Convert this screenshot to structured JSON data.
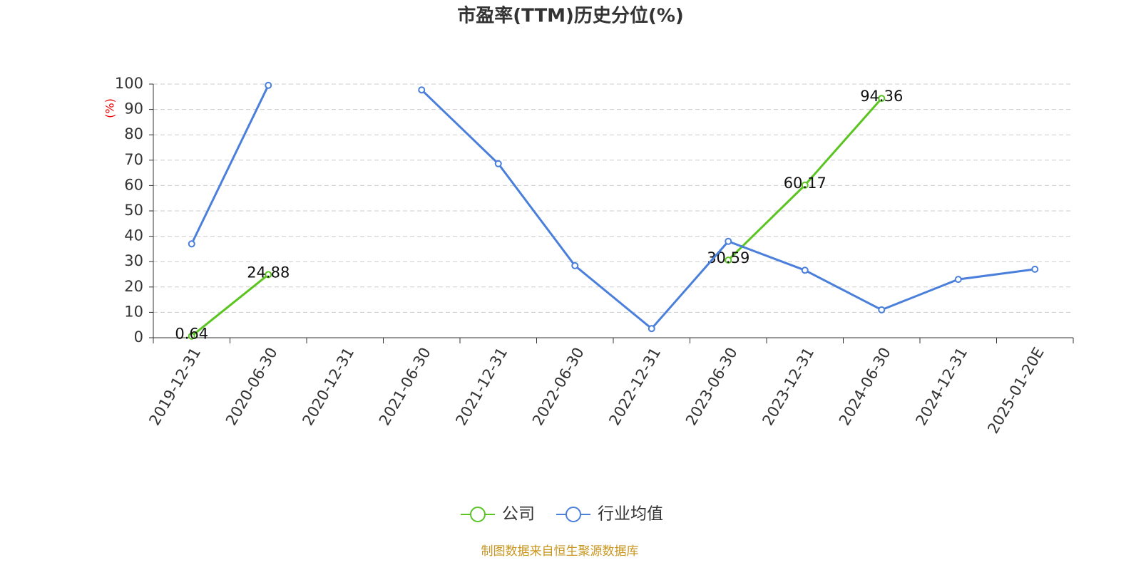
{
  "chart_data": {
    "type": "line",
    "title": "市盈率(TTM)历史分位(%)",
    "y_label": "(%)",
    "categories": [
      "2019-12-31",
      "2020-06-30",
      "2020-12-31",
      "2021-06-30",
      "2021-12-31",
      "2022-06-30",
      "2022-12-31",
      "2023-06-30",
      "2023-12-31",
      "2024-06-30",
      "2024-12-31",
      "2025-01-20E"
    ],
    "series": [
      {
        "name": "公司",
        "color": "#5ac421",
        "values": [
          0.64,
          24.88,
          null,
          null,
          null,
          null,
          null,
          30.59,
          60.17,
          94.36,
          null,
          null
        ],
        "show_labels": true
      },
      {
        "name": "行业均值",
        "color": "#4a7fdc",
        "values": [
          37,
          99.5,
          null,
          97.7,
          68.6,
          28.4,
          3.6,
          38,
          26.6,
          11,
          23,
          27
        ],
        "show_labels": false
      }
    ],
    "ylim": [
      0,
      100
    ],
    "yticks": [
      0,
      10,
      20,
      30,
      40,
      50,
      60,
      70,
      80,
      90,
      100
    ],
    "grid": true,
    "legend": "bottom",
    "source": "制图数据来自恒生聚源数据库"
  }
}
